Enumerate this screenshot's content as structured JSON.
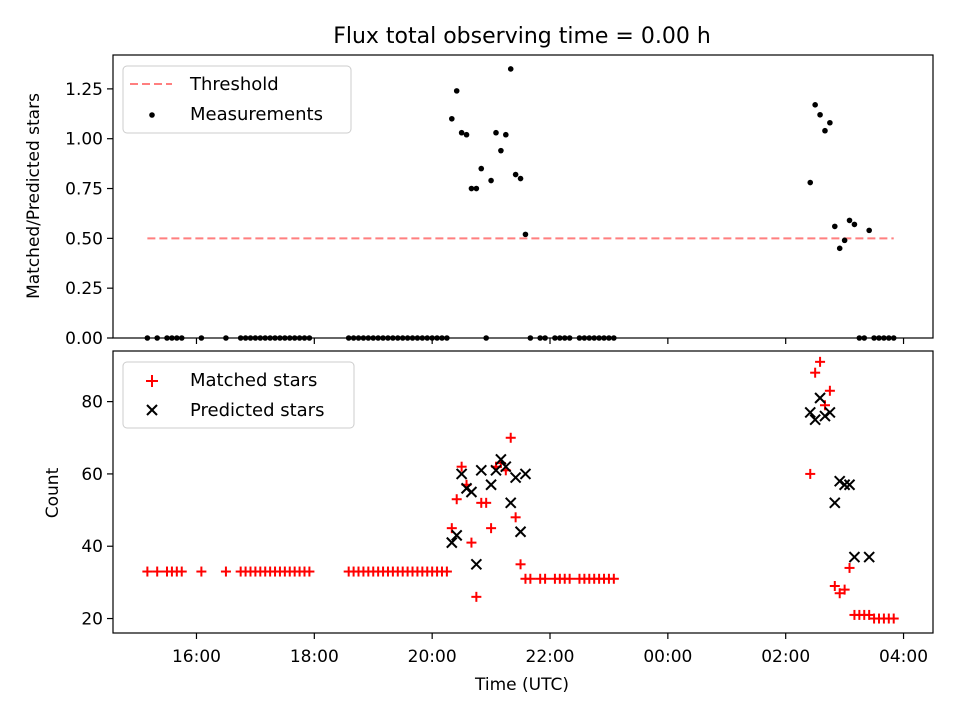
{
  "figure": {
    "title": "Flux total observing time = 0.00 h"
  },
  "chart_data": [
    {
      "type": "scatter",
      "title": "Flux total observing time = 0.00 h",
      "xlabel": "",
      "ylabel": "Matched/Predicted stars",
      "x_axis_type": "time-of-day",
      "xlim": [
        "14:35",
        "04:30 (+1 day)"
      ],
      "ylim": [
        0,
        1.42
      ],
      "yticks": [
        "0.00",
        "0.25",
        "0.50",
        "0.75",
        "1.00",
        "1.25"
      ],
      "legend": {
        "placement": "top-left",
        "entries": [
          "Threshold",
          "Measurements"
        ]
      },
      "colors": {
        "threshold": "#ff7f7f",
        "measurements": "#000000"
      },
      "series": [
        {
          "name": "Threshold",
          "kind": "dashed-line",
          "points": [
            [
              "15:10",
              0.5
            ],
            [
              "03:50",
              0.5
            ]
          ]
        },
        {
          "name": "Measurements",
          "kind": "points",
          "points": [
            [
              "15:10",
              0
            ],
            [
              "15:20",
              0
            ],
            [
              "15:30",
              0
            ],
            [
              "15:35",
              0
            ],
            [
              "15:40",
              0
            ],
            [
              "15:45",
              0
            ],
            [
              "16:05",
              0
            ],
            [
              "16:30",
              0
            ],
            [
              "16:45",
              0
            ],
            [
              "16:50",
              0
            ],
            [
              "16:55",
              0
            ],
            [
              "17:00",
              0
            ],
            [
              "17:05",
              0
            ],
            [
              "17:10",
              0
            ],
            [
              "17:15",
              0
            ],
            [
              "17:20",
              0
            ],
            [
              "17:25",
              0
            ],
            [
              "17:30",
              0
            ],
            [
              "17:35",
              0
            ],
            [
              "17:40",
              0
            ],
            [
              "17:45",
              0
            ],
            [
              "17:50",
              0
            ],
            [
              "17:55",
              0
            ],
            [
              "18:35",
              0
            ],
            [
              "18:40",
              0
            ],
            [
              "18:45",
              0
            ],
            [
              "18:50",
              0
            ],
            [
              "18:55",
              0
            ],
            [
              "19:00",
              0
            ],
            [
              "19:05",
              0
            ],
            [
              "19:10",
              0
            ],
            [
              "19:15",
              0
            ],
            [
              "19:20",
              0
            ],
            [
              "19:25",
              0
            ],
            [
              "19:30",
              0
            ],
            [
              "19:35",
              0
            ],
            [
              "19:40",
              0
            ],
            [
              "19:45",
              0
            ],
            [
              "19:50",
              0
            ],
            [
              "19:55",
              0
            ],
            [
              "20:00",
              0
            ],
            [
              "20:05",
              0
            ],
            [
              "20:10",
              0
            ],
            [
              "20:15",
              0
            ],
            [
              "20:20",
              1.1
            ],
            [
              "20:25",
              1.24
            ],
            [
              "20:30",
              1.03
            ],
            [
              "20:35",
              1.02
            ],
            [
              "20:40",
              0.75
            ],
            [
              "20:45",
              0.75
            ],
            [
              "20:50",
              0.85
            ],
            [
              "20:55",
              0.0
            ],
            [
              "21:00",
              0.79
            ],
            [
              "21:05",
              1.03
            ],
            [
              "21:10",
              0.94
            ],
            [
              "21:15",
              1.02
            ],
            [
              "21:20",
              1.35
            ],
            [
              "21:25",
              0.82
            ],
            [
              "21:30",
              0.8
            ],
            [
              "21:35",
              0.52
            ],
            [
              "21:40",
              0
            ],
            [
              "21:50",
              0
            ],
            [
              "21:55",
              0
            ],
            [
              "22:05",
              0
            ],
            [
              "22:10",
              0
            ],
            [
              "22:15",
              0
            ],
            [
              "22:20",
              0
            ],
            [
              "22:30",
              0
            ],
            [
              "22:35",
              0
            ],
            [
              "22:40",
              0
            ],
            [
              "22:45",
              0
            ],
            [
              "22:50",
              0
            ],
            [
              "22:55",
              0
            ],
            [
              "23:00",
              0
            ],
            [
              "23:05",
              0
            ],
            [
              "02:25",
              0.78
            ],
            [
              "02:30",
              1.17
            ],
            [
              "02:35",
              1.12
            ],
            [
              "02:40",
              1.04
            ],
            [
              "02:45",
              1.08
            ],
            [
              "02:50",
              0.56
            ],
            [
              "02:55",
              0.45
            ],
            [
              "03:00",
              0.49
            ],
            [
              "03:05",
              0.59
            ],
            [
              "03:10",
              0.57
            ],
            [
              "03:25",
              0.54
            ],
            [
              "03:15",
              0
            ],
            [
              "03:20",
              0
            ],
            [
              "03:30",
              0
            ],
            [
              "03:35",
              0
            ],
            [
              "03:40",
              0
            ],
            [
              "03:45",
              0
            ],
            [
              "03:50",
              0
            ]
          ]
        }
      ]
    },
    {
      "type": "scatter",
      "title": "",
      "xlabel": "Time (UTC)",
      "ylabel": "Count",
      "x_axis_type": "time-of-day",
      "xlim": [
        "14:35",
        "04:30 (+1 day)"
      ],
      "ylim": [
        16,
        94
      ],
      "yticks": [
        "20",
        "40",
        "60",
        "80"
      ],
      "xticks": [
        "16:00",
        "18:00",
        "20:00",
        "22:00",
        "00:00",
        "02:00",
        "04:00"
      ],
      "legend": {
        "placement": "top-left",
        "entries": [
          "Matched stars",
          "Predicted stars"
        ]
      },
      "colors": {
        "matched": "#ff0000",
        "predicted": "#000000"
      },
      "series": [
        {
          "name": "Matched stars",
          "marker": "plus",
          "points": [
            [
              "15:10",
              33
            ],
            [
              "15:20",
              33
            ],
            [
              "15:30",
              33
            ],
            [
              "15:35",
              33
            ],
            [
              "15:40",
              33
            ],
            [
              "15:45",
              33
            ],
            [
              "16:05",
              33
            ],
            [
              "16:30",
              33
            ],
            [
              "16:45",
              33
            ],
            [
              "16:50",
              33
            ],
            [
              "16:55",
              33
            ],
            [
              "17:00",
              33
            ],
            [
              "17:05",
              33
            ],
            [
              "17:10",
              33
            ],
            [
              "17:15",
              33
            ],
            [
              "17:20",
              33
            ],
            [
              "17:25",
              33
            ],
            [
              "17:30",
              33
            ],
            [
              "17:35",
              33
            ],
            [
              "17:40",
              33
            ],
            [
              "17:45",
              33
            ],
            [
              "17:50",
              33
            ],
            [
              "17:55",
              33
            ],
            [
              "18:35",
              33
            ],
            [
              "18:40",
              33
            ],
            [
              "18:45",
              33
            ],
            [
              "18:50",
              33
            ],
            [
              "18:55",
              33
            ],
            [
              "19:00",
              33
            ],
            [
              "19:05",
              33
            ],
            [
              "19:10",
              33
            ],
            [
              "19:15",
              33
            ],
            [
              "19:20",
              33
            ],
            [
              "19:25",
              33
            ],
            [
              "19:30",
              33
            ],
            [
              "19:35",
              33
            ],
            [
              "19:40",
              33
            ],
            [
              "19:45",
              33
            ],
            [
              "19:50",
              33
            ],
            [
              "19:55",
              33
            ],
            [
              "20:00",
              33
            ],
            [
              "20:05",
              33
            ],
            [
              "20:10",
              33
            ],
            [
              "20:15",
              33
            ],
            [
              "20:20",
              45
            ],
            [
              "20:25",
              53
            ],
            [
              "20:30",
              62
            ],
            [
              "20:35",
              57
            ],
            [
              "20:40",
              41
            ],
            [
              "20:45",
              26
            ],
            [
              "20:50",
              52
            ],
            [
              "20:55",
              52
            ],
            [
              "21:00",
              45
            ],
            [
              "21:05",
              62
            ],
            [
              "21:10",
              63
            ],
            [
              "21:15",
              61
            ],
            [
              "21:20",
              70
            ],
            [
              "21:25",
              48
            ],
            [
              "21:30",
              35
            ],
            [
              "21:35",
              31
            ],
            [
              "21:40",
              31
            ],
            [
              "21:50",
              31
            ],
            [
              "21:55",
              31
            ],
            [
              "22:05",
              31
            ],
            [
              "22:10",
              31
            ],
            [
              "22:15",
              31
            ],
            [
              "22:20",
              31
            ],
            [
              "22:30",
              31
            ],
            [
              "22:35",
              31
            ],
            [
              "22:40",
              31
            ],
            [
              "22:45",
              31
            ],
            [
              "22:50",
              31
            ],
            [
              "22:55",
              31
            ],
            [
              "23:00",
              31
            ],
            [
              "23:05",
              31
            ],
            [
              "02:25",
              60
            ],
            [
              "02:30",
              88
            ],
            [
              "02:35",
              91
            ],
            [
              "02:40",
              79
            ],
            [
              "02:45",
              83
            ],
            [
              "02:50",
              29
            ],
            [
              "02:55",
              27
            ],
            [
              "03:00",
              28
            ],
            [
              "03:05",
              34
            ],
            [
              "03:10",
              21
            ],
            [
              "03:15",
              21
            ],
            [
              "03:20",
              21
            ],
            [
              "03:25",
              21
            ],
            [
              "03:30",
              20
            ],
            [
              "03:35",
              20
            ],
            [
              "03:40",
              20
            ],
            [
              "03:45",
              20
            ],
            [
              "03:50",
              20
            ]
          ]
        },
        {
          "name": "Predicted stars",
          "marker": "x",
          "points": [
            [
              "20:20",
              41
            ],
            [
              "20:25",
              43
            ],
            [
              "20:30",
              60
            ],
            [
              "20:35",
              56
            ],
            [
              "20:40",
              55
            ],
            [
              "20:45",
              35
            ],
            [
              "20:50",
              61
            ],
            [
              "21:00",
              57
            ],
            [
              "21:05",
              61
            ],
            [
              "21:10",
              64
            ],
            [
              "21:15",
              62
            ],
            [
              "21:20",
              52
            ],
            [
              "21:25",
              59
            ],
            [
              "21:30",
              44
            ],
            [
              "21:35",
              60
            ],
            [
              "02:25",
              77
            ],
            [
              "02:30",
              75
            ],
            [
              "02:35",
              81
            ],
            [
              "02:40",
              76
            ],
            [
              "02:45",
              77
            ],
            [
              "02:50",
              52
            ],
            [
              "02:55",
              58
            ],
            [
              "03:00",
              57
            ],
            [
              "03:05",
              57
            ],
            [
              "03:10",
              37
            ],
            [
              "03:25",
              37
            ]
          ]
        }
      ]
    }
  ]
}
